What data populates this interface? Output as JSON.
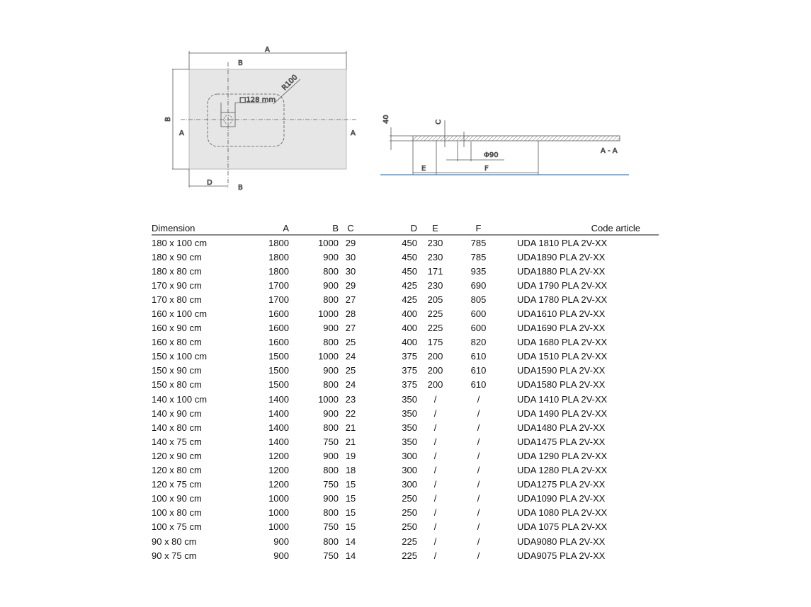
{
  "drawing": {
    "plan_labels": {
      "A": "A",
      "B": "B",
      "D": "D",
      "section_b": "B",
      "section_a": "A",
      "radius": "R100",
      "drain": "□128 mm"
    },
    "section_labels": {
      "height": "40",
      "C": "C",
      "E": "E",
      "F": "F",
      "diameter": "Φ90",
      "section": "A - A"
    },
    "colors": {
      "tray_fill": "#e6e6e6",
      "floor_line": "#3b82c4"
    }
  },
  "table": {
    "headers": [
      "Dimension",
      "A",
      "B",
      "C",
      "D",
      "E",
      "F",
      "Code article"
    ],
    "rows": [
      [
        "180 x 100 cm",
        "1800",
        "1000",
        "29",
        "450",
        "230",
        "785",
        "UDA 1810 PLA 2V-XX"
      ],
      [
        "180 x 90 cm",
        "1800",
        "900",
        "30",
        "450",
        "230",
        "785",
        "UDA1890 PLA 2V-XX"
      ],
      [
        "180 x 80 cm",
        "1800",
        "800",
        "30",
        "450",
        "171",
        "935",
        "UDA1880 PLA 2V-XX"
      ],
      [
        "170 x 90 cm",
        "1700",
        "900",
        "29",
        "425",
        "230",
        "690",
        "UDA 1790 PLA 2V-XX"
      ],
      [
        "170 x 80 cm",
        "1700",
        "800",
        "27",
        "425",
        "205",
        "805",
        "UDA 1780 PLA 2V-XX"
      ],
      [
        "160 x 100 cm",
        "1600",
        "1000",
        "28",
        "400",
        "225",
        "600",
        "UDA1610 PLA 2V-XX"
      ],
      [
        "160 x 90 cm",
        "1600",
        "900",
        "27",
        "400",
        "225",
        "600",
        "UDA1690 PLA 2V-XX"
      ],
      [
        "160 x 80 cm",
        "1600",
        "800",
        "25",
        "400",
        "175",
        "820",
        "UDA 1680 PLA 2V-XX"
      ],
      [
        "150 x 100 cm",
        "1500",
        "1000",
        "24",
        "375",
        "200",
        "610",
        "UDA 1510 PLA 2V-XX"
      ],
      [
        "150 x 90 cm",
        "1500",
        "900",
        "25",
        "375",
        "200",
        "610",
        "UDA1590 PLA 2V-XX"
      ],
      [
        "150 x 80 cm",
        "1500",
        "800",
        "24",
        "375",
        "200",
        "610",
        "UDA1580 PLA 2V-XX"
      ],
      [
        "140 x 100 cm",
        "1400",
        "1000",
        "23",
        "350",
        "/",
        "/",
        "UDA 1410 PLA 2V-XX"
      ],
      [
        "140 x 90 cm",
        "1400",
        "900",
        "22",
        "350",
        "/",
        "/",
        "UDA 1490 PLA 2V-XX"
      ],
      [
        "140 x 80 cm",
        "1400",
        "800",
        "21",
        "350",
        "/",
        "/",
        "UDA1480 PLA 2V-XX"
      ],
      [
        "140 x 75 cm",
        "1400",
        "750",
        "21",
        "350",
        "/",
        "/",
        "UDA1475 PLA 2V-XX"
      ],
      [
        "120 x 90 cm",
        "1200",
        "900",
        "19",
        "300",
        "/",
        "/",
        "UDA 1290 PLA 2V-XX"
      ],
      [
        "120 x 80 cm",
        "1200",
        "800",
        "18",
        "300",
        "/",
        "/",
        "UDA 1280 PLA 2V-XX"
      ],
      [
        "120 x 75 cm",
        "1200",
        "750",
        "15",
        "300",
        "/",
        "/",
        "UDA1275 PLA 2V-XX"
      ],
      [
        "100 x 90 cm",
        "1000",
        "900",
        "15",
        "250",
        "/",
        "/",
        "UDA1090 PLA 2V-XX"
      ],
      [
        "100 x 80 cm",
        "1000",
        "800",
        "15",
        "250",
        "/",
        "/",
        "UDA 1080 PLA 2V-XX"
      ],
      [
        "100 x 75 cm",
        "1000",
        "750",
        "15",
        "250",
        "/",
        "/",
        "UDA 1075 PLA 2V-XX"
      ],
      [
        "90 x 80 cm",
        "900",
        "800",
        "14",
        "225",
        "/",
        "/",
        "UDA9080 PLA 2V-XX"
      ],
      [
        "90 x 75 cm",
        "900",
        "750",
        "14",
        "225",
        "/",
        "/",
        "UDA9075 PLA 2V-XX"
      ]
    ]
  }
}
